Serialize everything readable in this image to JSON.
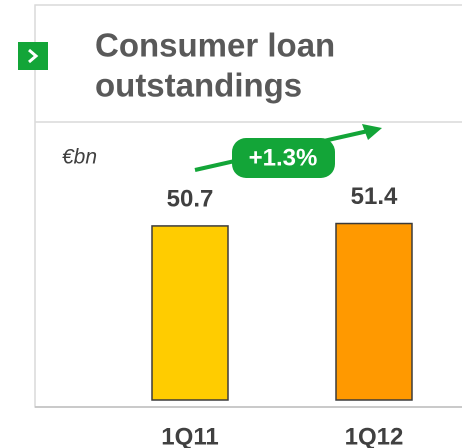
{
  "chart_data": {
    "type": "bar",
    "title": [
      "Consumer loan",
      "outstandings"
    ],
    "y_label": "€bn",
    "annotation": "+1.3%",
    "categories": [
      "1Q11",
      "1Q12"
    ],
    "values": [
      50.7,
      51.4
    ],
    "colors": [
      "#ffcc00",
      "#ff9900"
    ],
    "ylim": [
      0,
      60
    ]
  }
}
